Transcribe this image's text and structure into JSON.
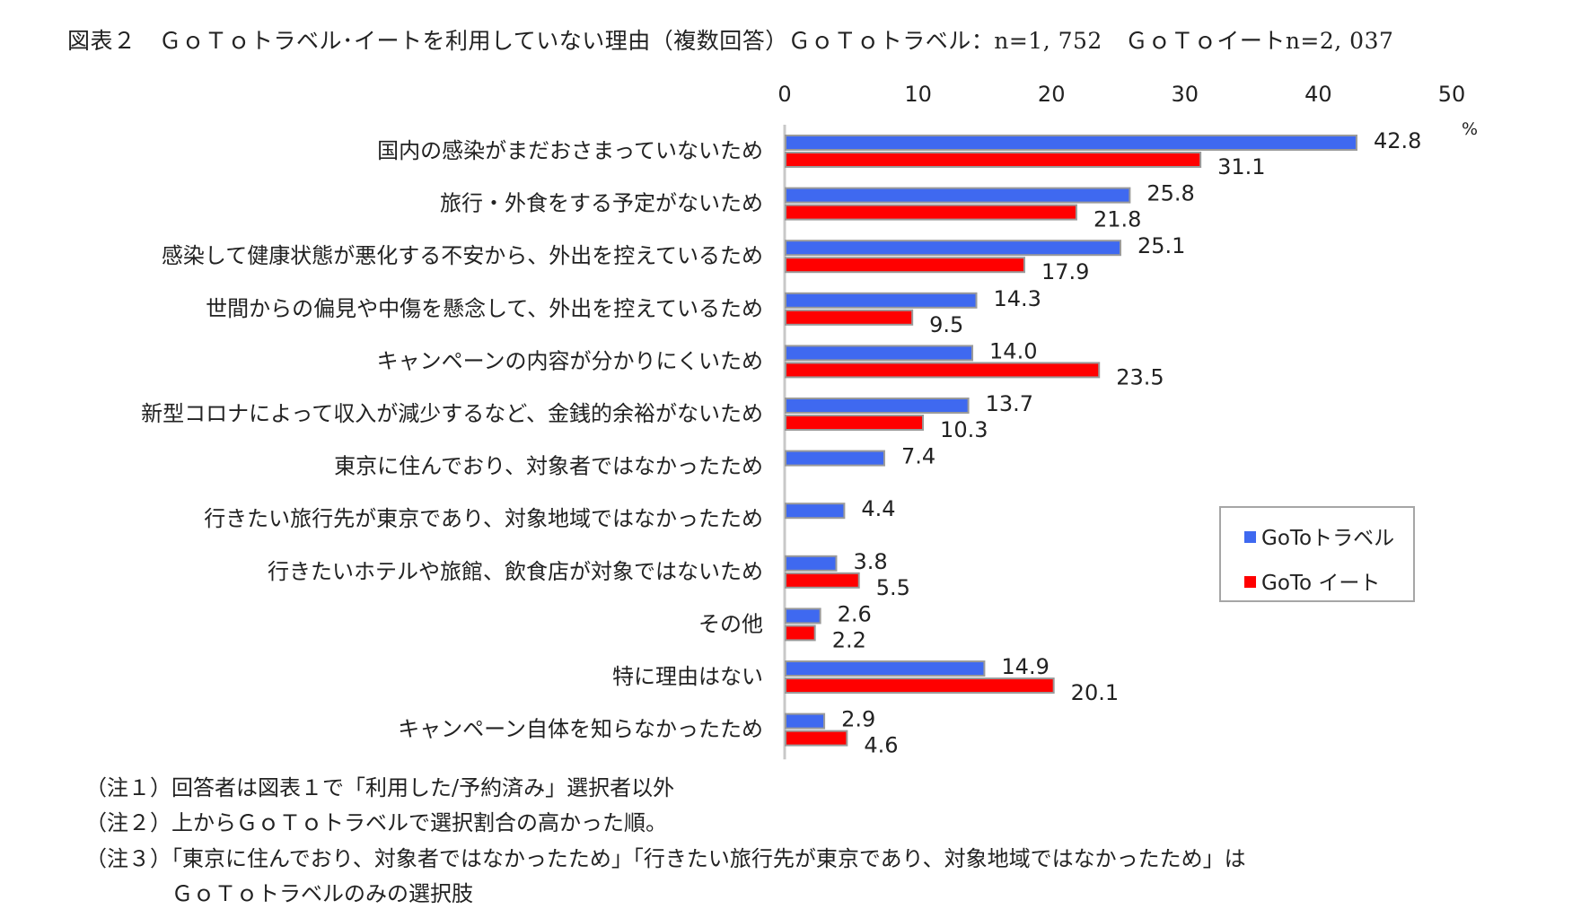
{
  "title": "図表２　ＧｏＴｏトラベル･イートを利用していない理由（複数回答）ＧｏＴｏトラベル：n=1, 752　ＧｏＴｏイートn=2, 037",
  "colors": {
    "travel": "#3f69f0",
    "eat": "#ff0000",
    "bar_edge": "#9a9a9a",
    "axis": "#c8c8c8"
  },
  "legend": {
    "travel": "GoToトラベル",
    "eat": "GoTo イート"
  },
  "notes": [
    "（注１）回答者は図表１で「利用した/予約済み」選択者以外",
    "（注２）上からＧｏＴｏトラベルで選択割合の高かった順。",
    "（注３）「東京に住んでおり、対象者ではなかったため」「行きたい旅行先が東京であり、対象地域ではなかったため」は",
    "　　　　ＧｏＴｏトラベルのみの選択肢"
  ],
  "chart_data": {
    "type": "bar",
    "orientation": "horizontal",
    "unit": "%",
    "xlim": [
      0,
      50
    ],
    "xticks": [
      0,
      10,
      20,
      30,
      40,
      50
    ],
    "legend_position": "right",
    "categories": [
      "国内の感染がまだおさまっていないため",
      "旅行・外食をする予定がないため",
      "感染して健康状態が悪化する不安から、外出を控えているため",
      "世間からの偏見や中傷を懸念して、外出を控えているため",
      "キャンペーンの内容が分かりにくいため",
      "新型コロナによって収入が減少するなど、金銭的余裕がないため",
      "東京に住んでおり、対象者ではなかったため",
      "行きたい旅行先が東京であり、対象地域ではなかったため",
      "行きたいホテルや旅館、飲食店が対象ではないため",
      "その他",
      "特に理由はない",
      "キャンペーン自体を知らなかったため"
    ],
    "series": [
      {
        "name": "GoToトラベル",
        "values": [
          42.8,
          25.8,
          25.1,
          14.3,
          14.0,
          13.7,
          7.4,
          4.4,
          3.8,
          2.6,
          14.9,
          2.9
        ]
      },
      {
        "name": "GoTo イート",
        "values": [
          31.1,
          21.8,
          17.9,
          9.5,
          23.5,
          10.3,
          null,
          null,
          5.5,
          2.2,
          20.1,
          4.6
        ]
      }
    ]
  }
}
